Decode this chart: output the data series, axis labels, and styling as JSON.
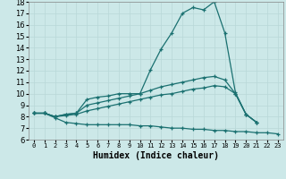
{
  "xlabel": "Humidex (Indice chaleur)",
  "background_color": "#cce8e8",
  "line_color": "#1a7070",
  "grid_color": "#b8d8d8",
  "xlim": [
    -0.5,
    23.5
  ],
  "ylim": [
    6,
    18
  ],
  "xticks": [
    0,
    1,
    2,
    3,
    4,
    5,
    6,
    7,
    8,
    9,
    10,
    11,
    12,
    13,
    14,
    15,
    16,
    17,
    18,
    19,
    20,
    21,
    22,
    23
  ],
  "yticks": [
    6,
    7,
    8,
    9,
    10,
    11,
    12,
    13,
    14,
    15,
    16,
    17,
    18
  ],
  "series": [
    {
      "x": [
        0,
        1,
        2,
        3,
        4,
        5,
        6,
        7,
        8,
        9,
        10,
        11,
        12,
        13,
        14,
        15,
        16,
        17,
        18,
        19,
        20,
        21
      ],
      "y": [
        8.3,
        8.3,
        8.0,
        8.2,
        8.3,
        9.5,
        9.7,
        9.8,
        10.0,
        10.0,
        10.0,
        12.1,
        13.9,
        15.3,
        17.0,
        17.5,
        17.3,
        18.0,
        15.3,
        10.1,
        8.2,
        7.5
      ]
    },
    {
      "x": [
        0,
        1,
        2,
        3,
        4,
        5,
        6,
        7,
        8,
        9,
        10,
        11,
        12,
        13,
        14,
        15,
        16,
        17,
        18,
        19,
        20,
        21
      ],
      "y": [
        8.3,
        8.3,
        8.0,
        8.2,
        8.3,
        9.0,
        9.2,
        9.4,
        9.6,
        9.8,
        10.0,
        10.3,
        10.6,
        10.8,
        11.0,
        11.2,
        11.4,
        11.5,
        11.2,
        10.0,
        8.2,
        7.5
      ]
    },
    {
      "x": [
        0,
        1,
        2,
        3,
        4,
        5,
        6,
        7,
        8,
        9,
        10,
        11,
        12,
        13,
        14,
        15,
        16,
        17,
        18,
        19,
        20,
        21
      ],
      "y": [
        8.3,
        8.3,
        8.0,
        8.1,
        8.2,
        8.5,
        8.7,
        8.9,
        9.1,
        9.3,
        9.5,
        9.7,
        9.9,
        10.0,
        10.2,
        10.4,
        10.5,
        10.7,
        10.6,
        10.0,
        8.2,
        7.5
      ]
    },
    {
      "x": [
        0,
        1,
        2,
        3,
        4,
        5,
        6,
        7,
        8,
        9,
        10,
        11,
        12,
        13,
        14,
        15,
        16,
        17,
        18,
        19,
        20,
        21,
        22,
        23
      ],
      "y": [
        8.3,
        8.3,
        7.9,
        7.5,
        7.4,
        7.3,
        7.3,
        7.3,
        7.3,
        7.3,
        7.2,
        7.2,
        7.1,
        7.0,
        7.0,
        6.9,
        6.9,
        6.8,
        6.8,
        6.7,
        6.7,
        6.6,
        6.6,
        6.5
      ]
    }
  ]
}
